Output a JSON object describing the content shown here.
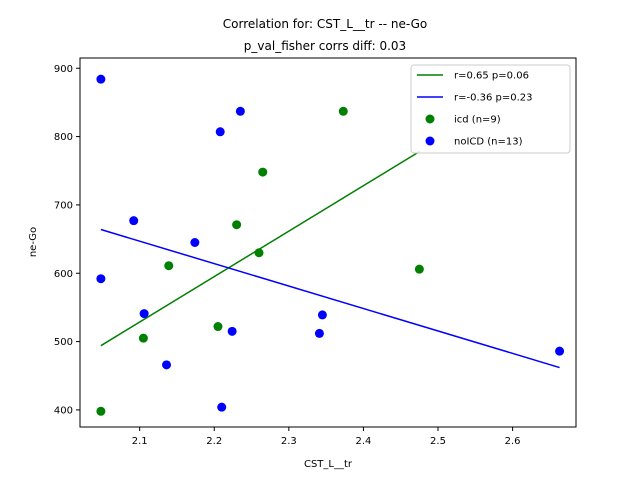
{
  "chart_data": {
    "type": "scatter",
    "title": "Correlation for: CST_L__tr -- ne-Go",
    "subtitle": "p_val_fisher corrs diff: 0.03",
    "xlabel": "CST_L__tr",
    "ylabel": "ne-Go",
    "xlim": [
      2.02,
      2.685
    ],
    "ylim": [
      375,
      915
    ],
    "xticks": [
      {
        "value": 2.1,
        "label": "2.1"
      },
      {
        "value": 2.2,
        "label": "2.2"
      },
      {
        "value": 2.3,
        "label": "2.3"
      },
      {
        "value": 2.4,
        "label": "2.4"
      },
      {
        "value": 2.5,
        "label": "2.5"
      },
      {
        "value": 2.6,
        "label": "2.6"
      }
    ],
    "yticks": [
      {
        "value": 400,
        "label": "400"
      },
      {
        "value": 500,
        "label": "500"
      },
      {
        "value": 600,
        "label": "600"
      },
      {
        "value": 700,
        "label": "700"
      },
      {
        "value": 800,
        "label": "800"
      },
      {
        "value": 900,
        "label": "900"
      }
    ],
    "grid": false,
    "legend_position": "top-right",
    "series": [
      {
        "name": "icd (n=9)",
        "color": "#008000",
        "points": [
          {
            "x": 2.048,
            "y": 398
          },
          {
            "x": 2.105,
            "y": 505
          },
          {
            "x": 2.139,
            "y": 611
          },
          {
            "x": 2.205,
            "y": 522
          },
          {
            "x": 2.23,
            "y": 671
          },
          {
            "x": 2.26,
            "y": 630
          },
          {
            "x": 2.265,
            "y": 748
          },
          {
            "x": 2.373,
            "y": 837
          },
          {
            "x": 2.475,
            "y": 606
          }
        ],
        "fit": {
          "name": "r=0.65 p=0.06",
          "x": [
            2.048,
            2.475
          ],
          "y": [
            494,
            778
          ]
        }
      },
      {
        "name": "noICD (n=13)",
        "color": "#0000ff",
        "points": [
          {
            "x": 2.048,
            "y": 884
          },
          {
            "x": 2.048,
            "y": 592
          },
          {
            "x": 2.092,
            "y": 677
          },
          {
            "x": 2.106,
            "y": 541
          },
          {
            "x": 2.136,
            "y": 466
          },
          {
            "x": 2.174,
            "y": 645
          },
          {
            "x": 2.208,
            "y": 807
          },
          {
            "x": 2.21,
            "y": 404
          },
          {
            "x": 2.224,
            "y": 515
          },
          {
            "x": 2.235,
            "y": 837
          },
          {
            "x": 2.341,
            "y": 512
          },
          {
            "x": 2.345,
            "y": 539
          },
          {
            "x": 2.663,
            "y": 486
          }
        ],
        "fit": {
          "name": "r=-0.36 p=0.23",
          "x": [
            2.048,
            2.663
          ],
          "y": [
            664,
            462
          ]
        }
      }
    ],
    "legend": [
      {
        "kind": "line",
        "label": "r=0.65 p=0.06",
        "color": "#008000"
      },
      {
        "kind": "line",
        "label": "r=-0.36 p=0.23",
        "color": "#0000ff"
      },
      {
        "kind": "marker",
        "label": "icd (n=9)",
        "color": "#008000"
      },
      {
        "kind": "marker",
        "label": "noICD (n=13)",
        "color": "#0000ff"
      }
    ]
  }
}
